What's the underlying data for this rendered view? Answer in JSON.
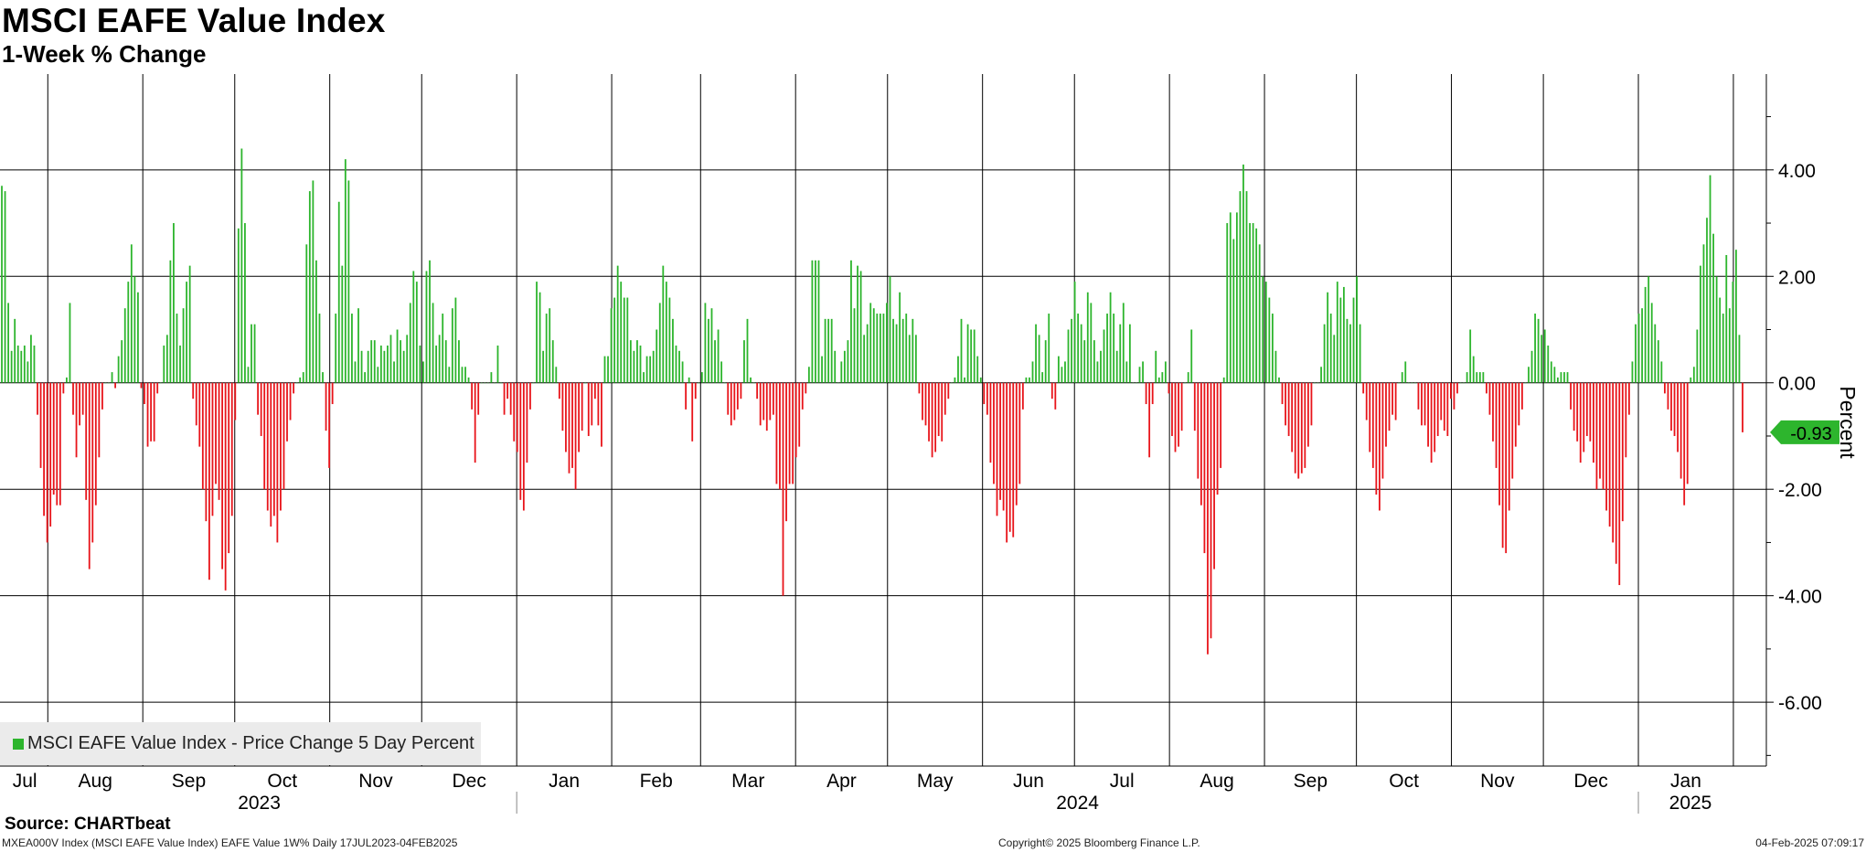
{
  "header": {
    "title": "MSCI EAFE Value Index",
    "subtitle": "1-Week % Change"
  },
  "legend": {
    "label": "MSCI EAFE Value Index - Price Change 5 Day Percent",
    "swatch_color": "#2db52d"
  },
  "colors": {
    "positive": "#2db52d",
    "negative": "#e8141a",
    "grid": "#000000",
    "last_value_tag": "#2db52d"
  },
  "source": "Source: CHARTbeat",
  "footer": {
    "left": "MXEA000V Index (MSCI EAFE Value Index) EAFE Value 1W%  Daily 17JUL2023-04FEB2025",
    "center": "Copyright© 2025 Bloomberg Finance L.P.",
    "right": "04-Feb-2025 07:09:17"
  },
  "chart_data": {
    "type": "bar",
    "title": "MSCI EAFE Value Index",
    "subtitle": "1-Week % Change",
    "ylabel": "Percent",
    "ylim": [
      -7.2,
      5.8
    ],
    "y_ticks": [
      4.0,
      2.0,
      0.0,
      -2.0,
      -4.0,
      -6.0
    ],
    "y_tick_labels": [
      "4.00",
      "2.00",
      "0.00",
      "-2.00",
      "-4.00",
      "-6.00"
    ],
    "x_range": [
      "2023-07-17",
      "2025-02-04"
    ],
    "x_month_labels": [
      "Jul",
      "Aug",
      "Sep",
      "Oct",
      "Nov",
      "Dec",
      "Jan",
      "Feb",
      "Mar",
      "Apr",
      "May",
      "Jun",
      "Jul",
      "Aug",
      "Sep",
      "Oct",
      "Nov",
      "Dec",
      "Jan"
    ],
    "x_year_labels": [
      "2023",
      "2024",
      "2025"
    ],
    "grid": true,
    "legend_position": "bottom-left",
    "last_value": -0.93,
    "last_value_label": "-0.93",
    "series": [
      {
        "name": "MSCI EAFE Value Index - Price Change 5 Day Percent",
        "values": [
          3.7,
          3.6,
          1.5,
          0.6,
          1.2,
          0.7,
          0.6,
          0.7,
          0.4,
          0.9,
          0.7,
          -0.6,
          -1.6,
          -2.5,
          -3.0,
          -2.7,
          -2.1,
          -2.3,
          -2.3,
          -0.2,
          0.1,
          1.5,
          -0.6,
          -1.4,
          -0.8,
          -0.6,
          -2.2,
          -3.5,
          -3.0,
          -2.3,
          -1.4,
          -0.5,
          0.0,
          0.0,
          0.2,
          -0.1,
          0.5,
          0.8,
          1.4,
          1.9,
          2.6,
          2.0,
          1.7,
          -0.1,
          -0.4,
          -1.2,
          -1.1,
          -1.1,
          -0.2,
          0.0,
          0.7,
          0.9,
          2.3,
          3.0,
          1.3,
          0.7,
          1.4,
          1.9,
          2.2,
          -0.3,
          -0.8,
          -1.2,
          -2.0,
          -2.6,
          -3.7,
          -2.5,
          -1.9,
          -2.2,
          -3.5,
          -3.9,
          -3.2,
          -2.5,
          -0.7,
          2.9,
          4.4,
          3.0,
          0.3,
          1.1,
          1.1,
          -0.6,
          -1.0,
          -2.0,
          -2.4,
          -2.7,
          -2.5,
          -3.0,
          -2.4,
          -2.0,
          -1.1,
          -0.7,
          -0.2,
          0.0,
          0.1,
          0.2,
          2.6,
          3.6,
          3.8,
          2.3,
          1.3,
          0.2,
          -0.9,
          -1.6,
          -0.4,
          1.3,
          3.4,
          2.2,
          4.2,
          3.8,
          1.3,
          0.4,
          1.4,
          0.6,
          0.2,
          0.6,
          0.8,
          0.8,
          0.3,
          0.7,
          0.6,
          0.7,
          0.9,
          0.4,
          1.0,
          0.8,
          0.6,
          0.9,
          1.5,
          2.1,
          1.9,
          0.7,
          0.4,
          2.1,
          2.3,
          1.5,
          0.7,
          0.9,
          1.3,
          0.8,
          0.3,
          1.4,
          1.6,
          0.8,
          0.3,
          0.3,
          0.1,
          -0.5,
          -1.5,
          -0.6,
          0.0,
          0.0,
          0.0,
          0.2,
          0.0,
          0.7,
          0.0,
          -0.6,
          -0.3,
          -0.6,
          -1.1,
          -1.3,
          -2.2,
          -2.4,
          -1.5,
          -0.5,
          0.0,
          1.9,
          1.7,
          0.6,
          1.3,
          1.4,
          0.8,
          0.3,
          -0.3,
          -0.9,
          -1.3,
          -1.7,
          -1.6,
          -2.0,
          -1.3,
          -0.9,
          0.0,
          -1.0,
          -0.8,
          -0.3,
          -0.8,
          -1.2,
          0.5,
          0.5,
          1.4,
          1.6,
          2.2,
          1.9,
          1.6,
          1.6,
          0.8,
          0.6,
          0.8,
          0.7,
          0.2,
          0.5,
          0.5,
          0.6,
          1.0,
          1.5,
          2.2,
          1.9,
          1.6,
          1.2,
          0.7,
          0.6,
          0.4,
          -0.5,
          0.1,
          -1.1,
          -0.3,
          0.0,
          0.2,
          1.5,
          1.2,
          1.4,
          0.8,
          1.0,
          0.4,
          0.0,
          -0.6,
          -0.8,
          -0.7,
          -0.5,
          -0.3,
          0.8,
          1.2,
          0.1,
          0.0,
          -0.3,
          -0.8,
          -0.7,
          -0.9,
          -0.7,
          -0.6,
          -1.9,
          -2.0,
          -4.0,
          -2.6,
          -1.9,
          -1.9,
          -1.4,
          -1.2,
          -0.5,
          -0.2,
          0.3,
          2.3,
          2.3,
          2.3,
          0.5,
          1.2,
          1.2,
          1.2,
          0.6,
          0.0,
          0.4,
          0.6,
          0.8,
          2.3,
          1.4,
          2.2,
          2.1,
          0.9,
          1.1,
          1.5,
          1.4,
          1.3,
          1.3,
          1.3,
          1.5,
          2.0,
          1.2,
          1.1,
          1.7,
          1.2,
          1.3,
          0.9,
          1.2,
          0.9,
          -0.2,
          -0.7,
          -0.8,
          -1.1,
          -1.4,
          -1.3,
          -1.0,
          -1.1,
          -0.6,
          -0.3,
          0.0,
          0.1,
          0.5,
          1.2,
          0.1,
          1.1,
          1.0,
          1.0,
          0.5,
          0.1,
          -0.4,
          -0.6,
          -1.5,
          -1.9,
          -2.5,
          -2.2,
          -2.4,
          -3.0,
          -2.8,
          -2.9,
          -2.3,
          -1.9,
          -0.5,
          0.1,
          0.1,
          0.4,
          1.1,
          0.9,
          0.2,
          0.8,
          1.3,
          -0.3,
          -0.5,
          0.5,
          0.3,
          0.4,
          1.0,
          1.2,
          1.9,
          1.3,
          1.1,
          0.8,
          1.7,
          1.5,
          0.8,
          0.4,
          0.6,
          1.0,
          1.3,
          1.7,
          1.3,
          0.6,
          1.1,
          1.5,
          0.4,
          1.1,
          0.0,
          0.0,
          0.3,
          0.4,
          -0.4,
          -1.4,
          -0.4,
          0.6,
          0.1,
          0.2,
          0.4,
          -0.2,
          -1.0,
          -1.3,
          -1.2,
          -0.9,
          0.0,
          0.2,
          1.0,
          -0.9,
          -1.8,
          -2.3,
          -3.2,
          -5.1,
          -4.8,
          -3.5,
          -2.1,
          -1.6,
          0.1,
          3.0,
          3.2,
          2.7,
          3.2,
          3.6,
          4.1,
          3.6,
          3.0,
          3.0,
          2.9,
          2.6,
          2.0,
          1.9,
          1.6,
          1.3,
          0.6,
          0.1,
          -0.4,
          -0.8,
          -1.0,
          -1.3,
          -1.7,
          -1.8,
          -1.7,
          -1.6,
          -1.2,
          -0.8,
          0.0,
          0.0,
          0.3,
          1.1,
          1.7,
          1.3,
          0.9,
          1.9,
          1.6,
          1.8,
          1.2,
          1.1,
          1.6,
          2.0,
          1.1,
          -0.2,
          -0.7,
          -1.3,
          -1.6,
          -2.1,
          -2.4,
          -1.8,
          -1.2,
          -0.9,
          -0.6,
          -0.7,
          0.0,
          0.2,
          0.4,
          0.0,
          0.0,
          0.0,
          -0.5,
          -0.8,
          -0.8,
          -1.2,
          -1.5,
          -1.3,
          -1.0,
          -0.7,
          -0.9,
          -1.0,
          -0.3,
          -0.5,
          -0.2,
          0.0,
          0.0,
          0.2,
          1.0,
          0.5,
          0.2,
          0.2,
          0.2,
          -0.2,
          -0.6,
          -1.1,
          -1.6,
          -2.3,
          -3.1,
          -3.2,
          -2.4,
          -1.8,
          -1.2,
          -0.8,
          -0.5,
          0.0,
          0.3,
          0.6,
          1.3,
          1.2,
          0.9,
          1.0,
          0.7,
          0.4,
          0.3,
          0.1,
          0.2,
          0.2,
          0.2,
          -0.5,
          -0.9,
          -1.1,
          -1.5,
          -1.3,
          -1.0,
          -1.1,
          -1.5,
          -2.0,
          -1.8,
          -2.0,
          -2.4,
          -2.7,
          -3.0,
          -3.4,
          -3.8,
          -2.6,
          -1.4,
          -0.6,
          0.4,
          1.1,
          1.3,
          1.4,
          1.8,
          2.0,
          1.5,
          1.1,
          0.8,
          0.4,
          -0.2,
          -0.5,
          -0.9,
          -1.0,
          -1.3,
          -1.8,
          -2.3,
          -1.9,
          0.1,
          0.3,
          1.0,
          2.2,
          2.6,
          3.1,
          3.9,
          2.8,
          2.0,
          1.6,
          1.3,
          2.4,
          1.4,
          1.9,
          2.5,
          0.9,
          -0.93
        ]
      }
    ]
  }
}
